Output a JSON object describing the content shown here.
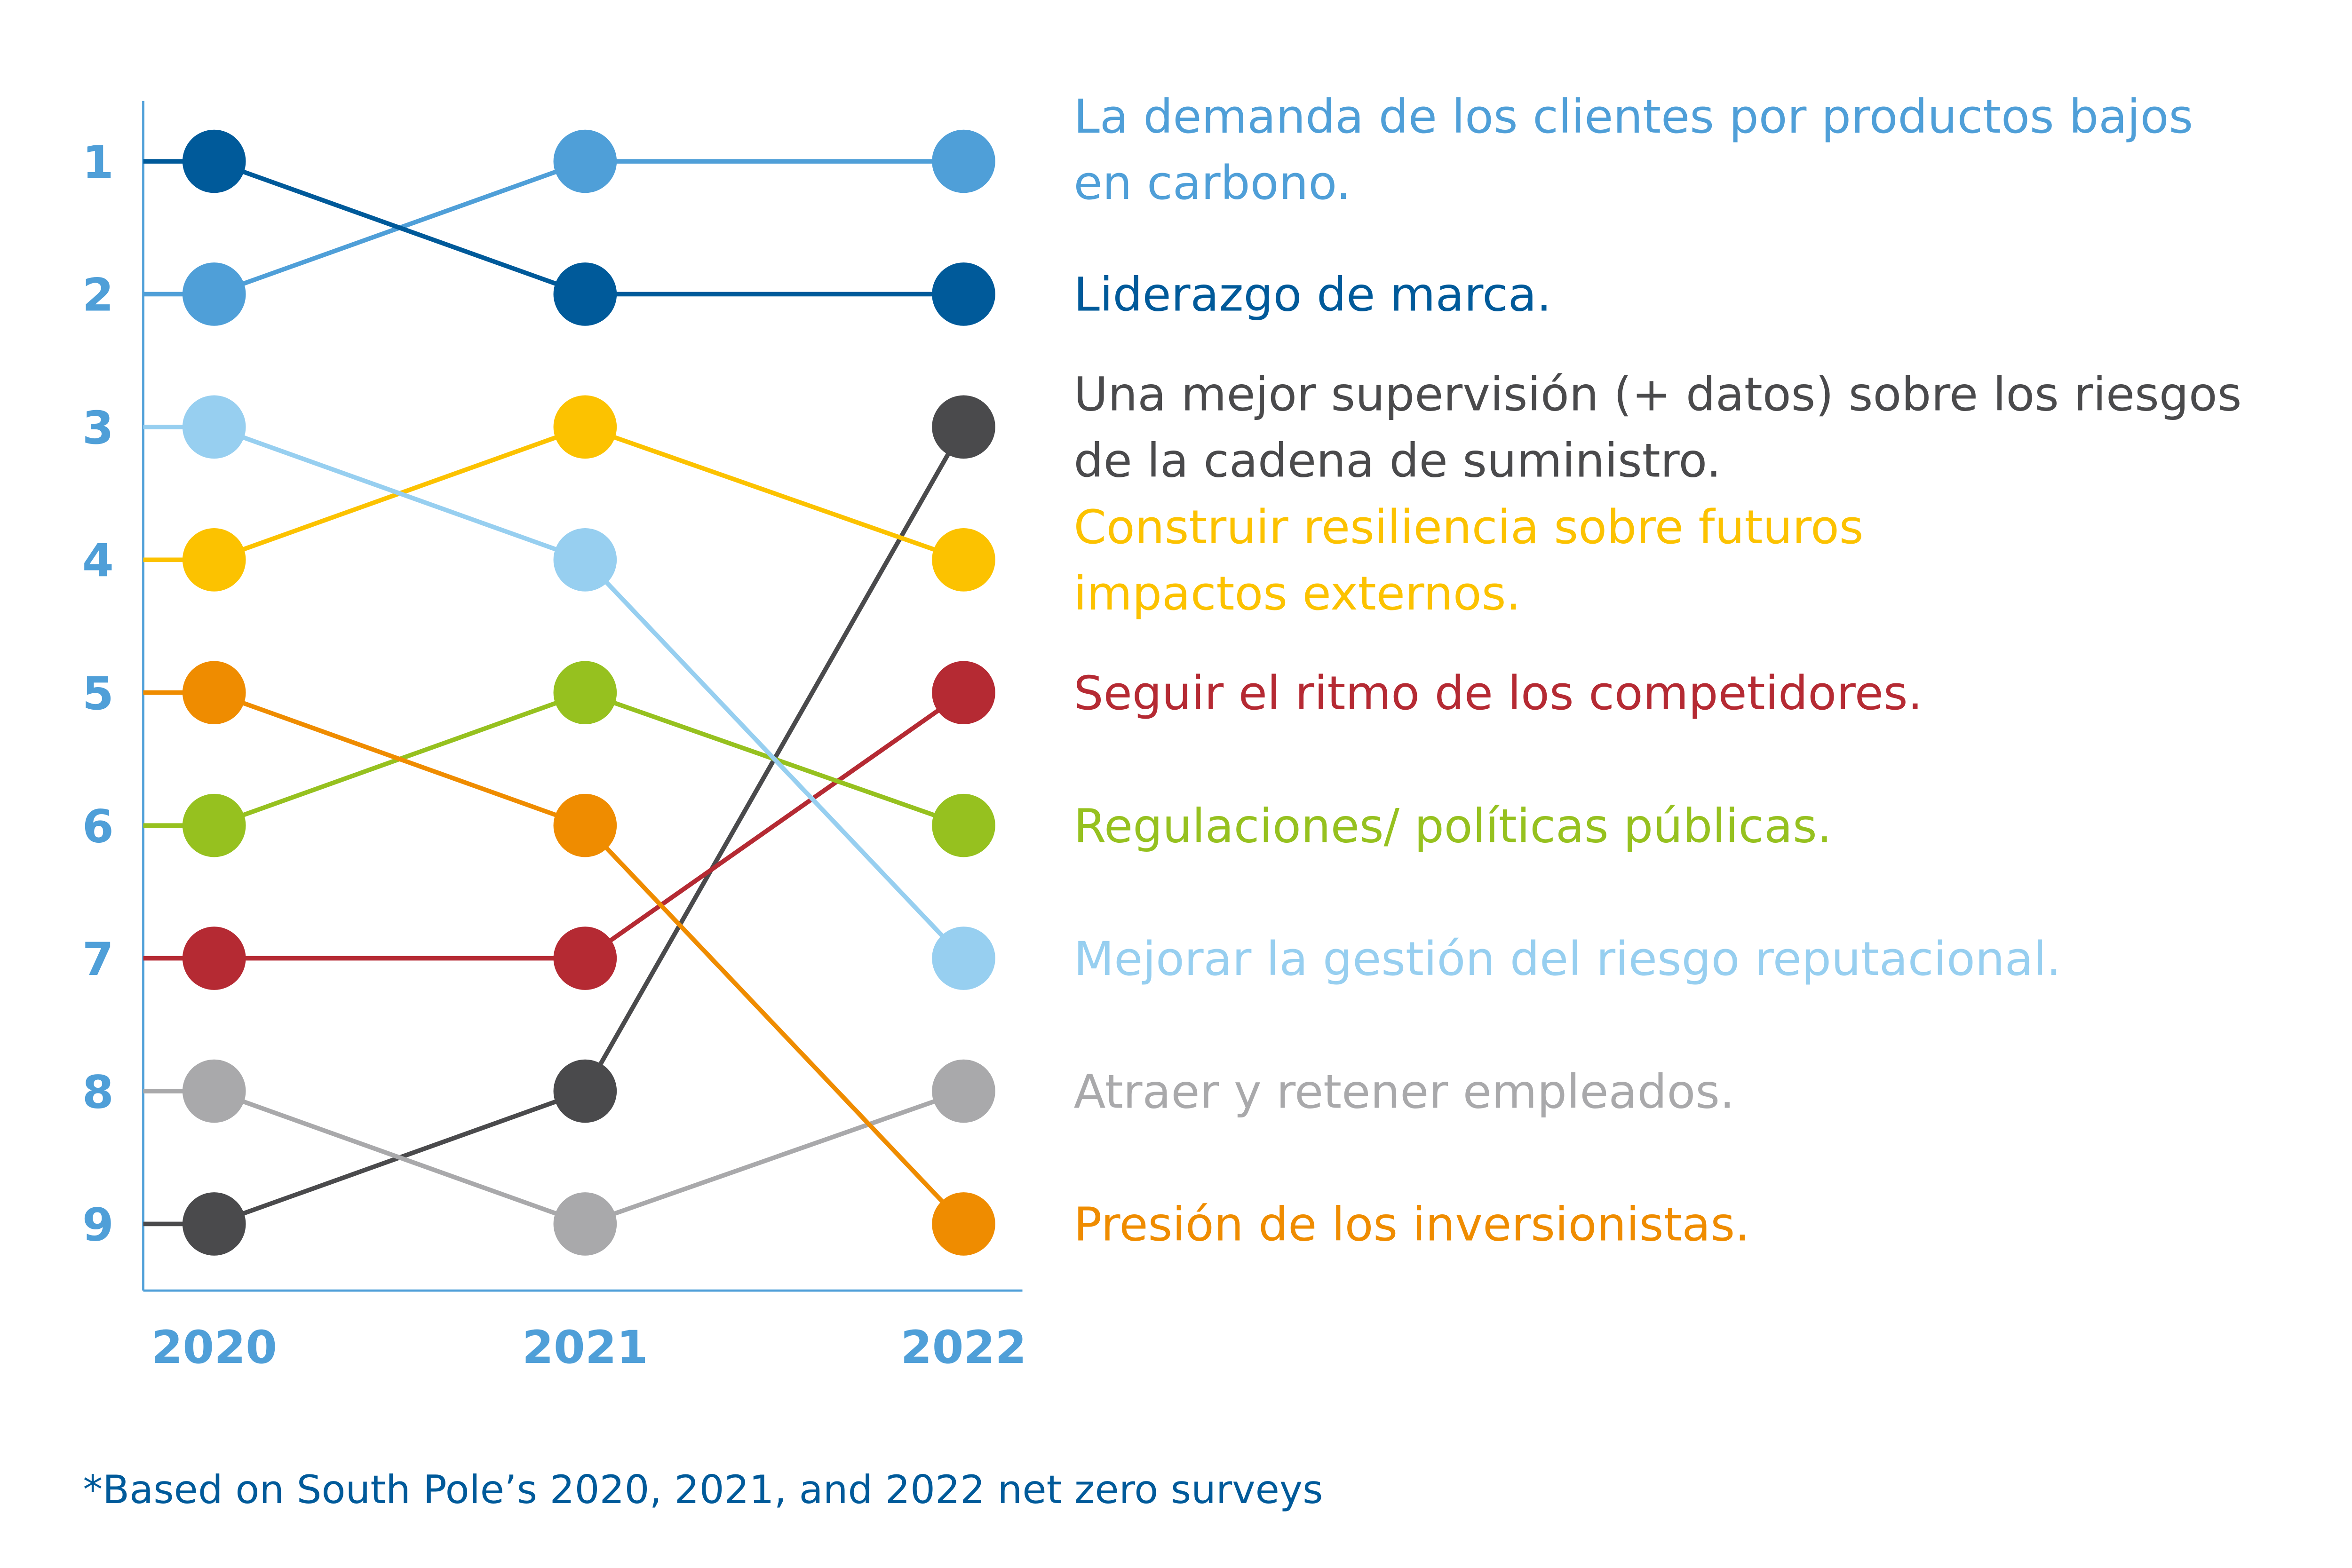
{
  "chart_data": {
    "type": "line",
    "subtype": "bump",
    "title": "",
    "x": [
      "2020",
      "2021",
      "2022"
    ],
    "y_ticks": [
      "1",
      "2",
      "3",
      "4",
      "5",
      "6",
      "7",
      "8",
      "9"
    ],
    "ylim": [
      1,
      9
    ],
    "y_inverted": true,
    "grid": false,
    "legend_placement": "right",
    "series": [
      {
        "name": "La demanda de los clientes por productos bajos en carbono.",
        "lines": [
          "La demanda de los clientes por productos bajos",
          "en carbono."
        ],
        "color": "#4f9fd8",
        "values": [
          2,
          1,
          1
        ]
      },
      {
        "name": "Liderazgo de marca.",
        "lines": [
          "Liderazgo de marca."
        ],
        "color": "#005a9a",
        "values": [
          1,
          2,
          2
        ]
      },
      {
        "name": "Una mejor supervisión (+ datos) sobre los riesgos de la cadena de suministro.",
        "lines": [
          "Una mejor supervisión (+ datos) sobre los riesgos",
          "de la cadena de suministro."
        ],
        "color": "#4a4a4c",
        "values": [
          9,
          8,
          3
        ]
      },
      {
        "name": "Construir resiliencia sobre futuros impactos externos.",
        "lines": [
          "Construir resiliencia sobre futuros",
          "impactos externos."
        ],
        "color": "#fcc200",
        "values": [
          4,
          3,
          4
        ]
      },
      {
        "name": "Seguir el ritmo de los competidores.",
        "lines": [
          "Seguir el ritmo de los competidores."
        ],
        "color": "#b52a33",
        "values": [
          7,
          7,
          5
        ]
      },
      {
        "name": "Regulaciones/ políticas públicas.",
        "lines": [
          "Regulaciones/ políticas públicas."
        ],
        "color": "#96c11f",
        "values": [
          6,
          5,
          6
        ]
      },
      {
        "name": "Mejorar la gestión del riesgo reputacional.",
        "lines": [
          "Mejorar la gestión del riesgo reputacional."
        ],
        "color": "#97cff0",
        "values": [
          3,
          4,
          7
        ]
      },
      {
        "name": "Atraer y retener empleados.",
        "lines": [
          "Atraer y retener empleados."
        ],
        "color": "#a9a9ab",
        "values": [
          8,
          9,
          8
        ]
      },
      {
        "name": "Presión de los inversionistas.",
        "lines": [
          "Presión de los inversionistas."
        ],
        "color": "#ef8c00",
        "values": [
          5,
          6,
          9
        ]
      }
    ],
    "footnote": "*Based on South Pole’s 2020, 2021, and 2022 net zero surveys"
  },
  "colors": {
    "axis": "#4f9fd8",
    "footnote": "#005a9a"
  }
}
